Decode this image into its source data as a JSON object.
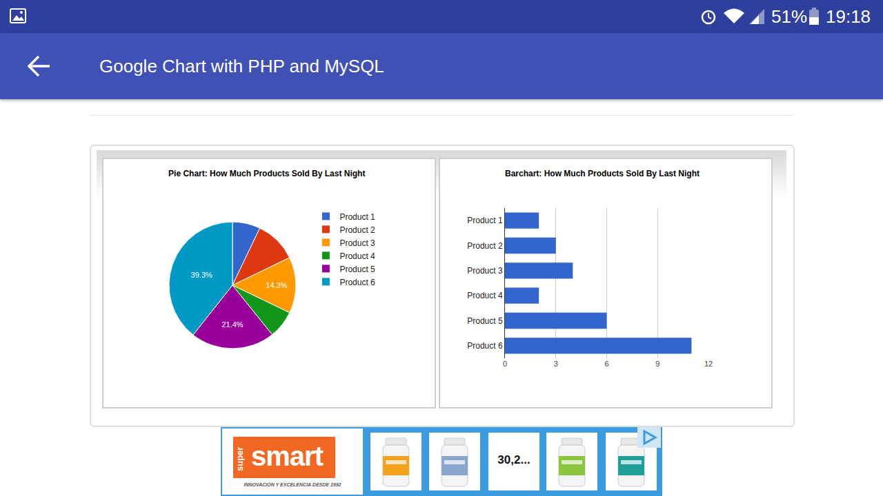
{
  "screen": {
    "status_bar": {
      "battery": "51%",
      "time": "19:18"
    },
    "app_bar": {
      "title": "Google Chart with PHP and MySQL"
    },
    "ad": {
      "brand_prefix": "super",
      "brand": "smart",
      "tagline": "INNOVACIÓN Y EXCELENCIA DESDE 1992",
      "price": "30,2..."
    }
  },
  "chart_data": [
    {
      "type": "pie",
      "title": "Pie Chart: How Much Products Sold By Last Night",
      "categories": [
        "Product 1",
        "Product 2",
        "Product 3",
        "Product 4",
        "Product 5",
        "Product 6"
      ],
      "values": [
        7.1,
        10.7,
        14.3,
        7.1,
        21.4,
        39.3
      ],
      "value_labels": [
        null,
        null,
        "14.3%",
        null,
        "21.4%",
        "39.3%"
      ],
      "data_labels": true,
      "colors": [
        "#3366cc",
        "#dc3912",
        "#ff9900",
        "#109618",
        "#990099",
        "#0099c6"
      ],
      "legend": "right"
    },
    {
      "type": "bar",
      "title": "Barchart: How Much Products Sold By Last Night",
      "orientation": "horizontal",
      "categories": [
        "Product 1",
        "Product 2",
        "Product 3",
        "Product 4",
        "Product 5",
        "Product 6"
      ],
      "values": [
        2,
        3,
        4,
        2,
        6,
        11
      ],
      "color": "#3366cc",
      "xlim": [
        0,
        12
      ],
      "xticks": [
        0,
        3,
        6,
        9,
        12
      ],
      "grid": true
    }
  ]
}
